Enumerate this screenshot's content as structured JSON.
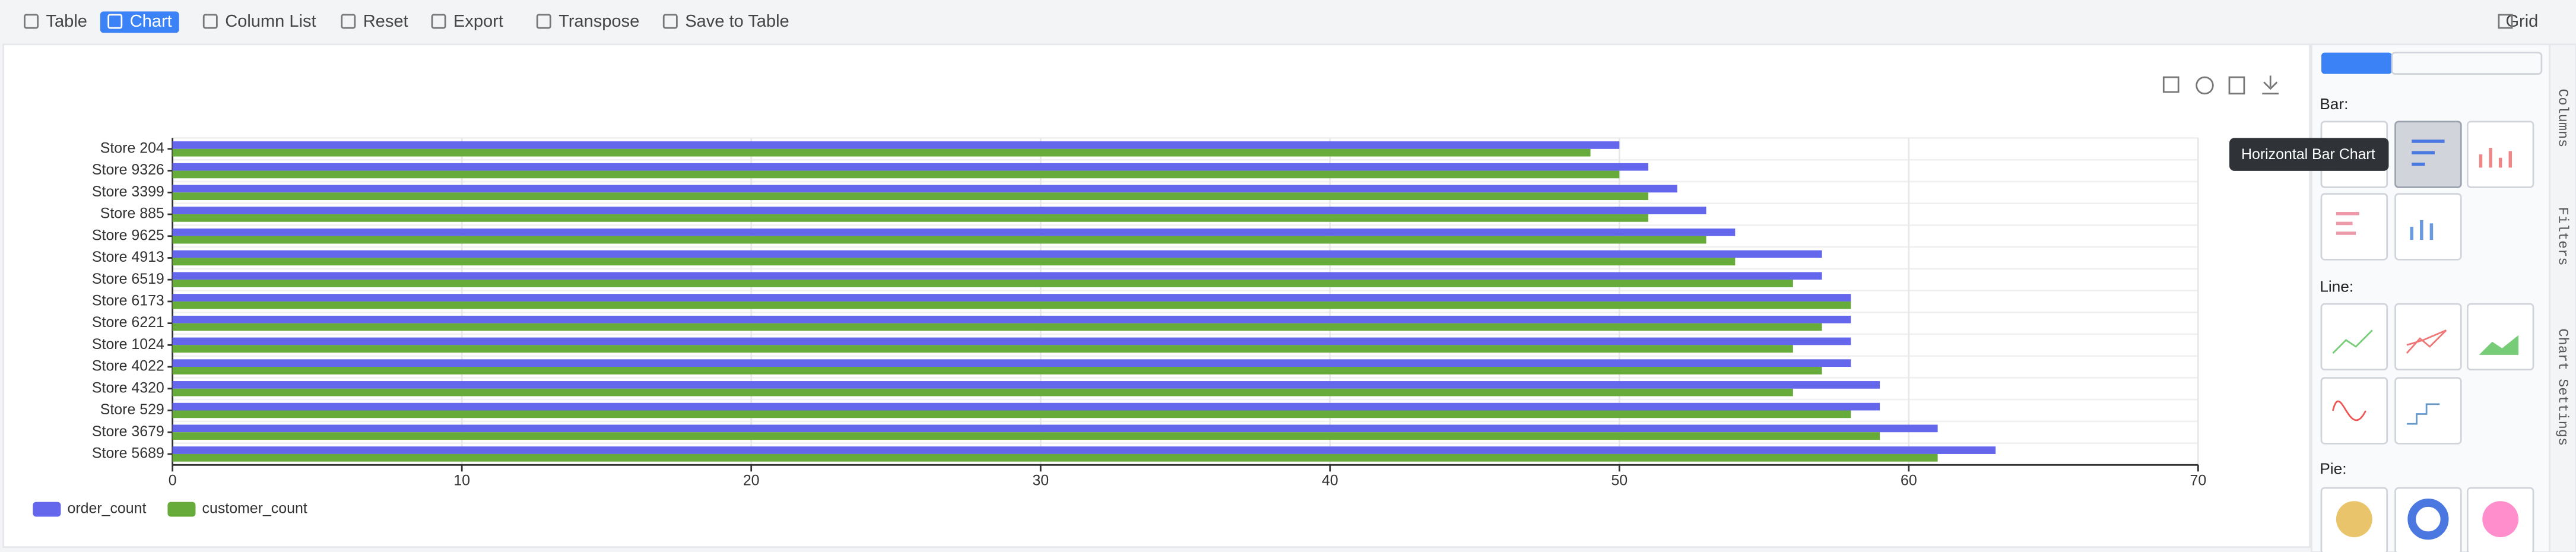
{
  "chart_data": {
    "type": "hbar",
    "categories": [
      "Store 204",
      "Store 9326",
      "Store 3399",
      "Store 885",
      "Store 9625",
      "Store 4913",
      "Store 6519",
      "Store 6173",
      "Store 6221",
      "Store 1024",
      "Store 4022",
      "Store 4320",
      "Store 529",
      "Store 3679",
      "Store 5689"
    ],
    "series": [
      {
        "name": "order_count",
        "color": "#6466ec",
        "values": [
          50,
          51,
          52,
          53,
          54,
          57,
          57,
          58,
          58,
          58,
          58,
          59,
          59,
          61,
          63
        ]
      },
      {
        "name": "customer_count",
        "color": "#67ab3a",
        "values": [
          49,
          50,
          51,
          51,
          53,
          54,
          56,
          58,
          57,
          56,
          57,
          56,
          58,
          59,
          61
        ]
      }
    ],
    "xlim": [
      0,
      70
    ],
    "xticks": [
      0,
      10,
      20,
      30,
      40,
      50,
      60,
      70
    ],
    "grid": true,
    "legend": "bottom-left"
  },
  "ui": {
    "toolbar": [
      "Table",
      "Chart",
      "Column List",
      "Reset",
      "Export",
      "Transpose",
      "Save to Table"
    ],
    "grid_button": "Grid",
    "panel": {
      "sections": [
        "Bar:",
        "Line:",
        "Pie:"
      ],
      "tooltip": "Horizontal Bar Chart"
    },
    "side_tabs": [
      "Columns",
      "Filters",
      "Chart Settings"
    ]
  }
}
